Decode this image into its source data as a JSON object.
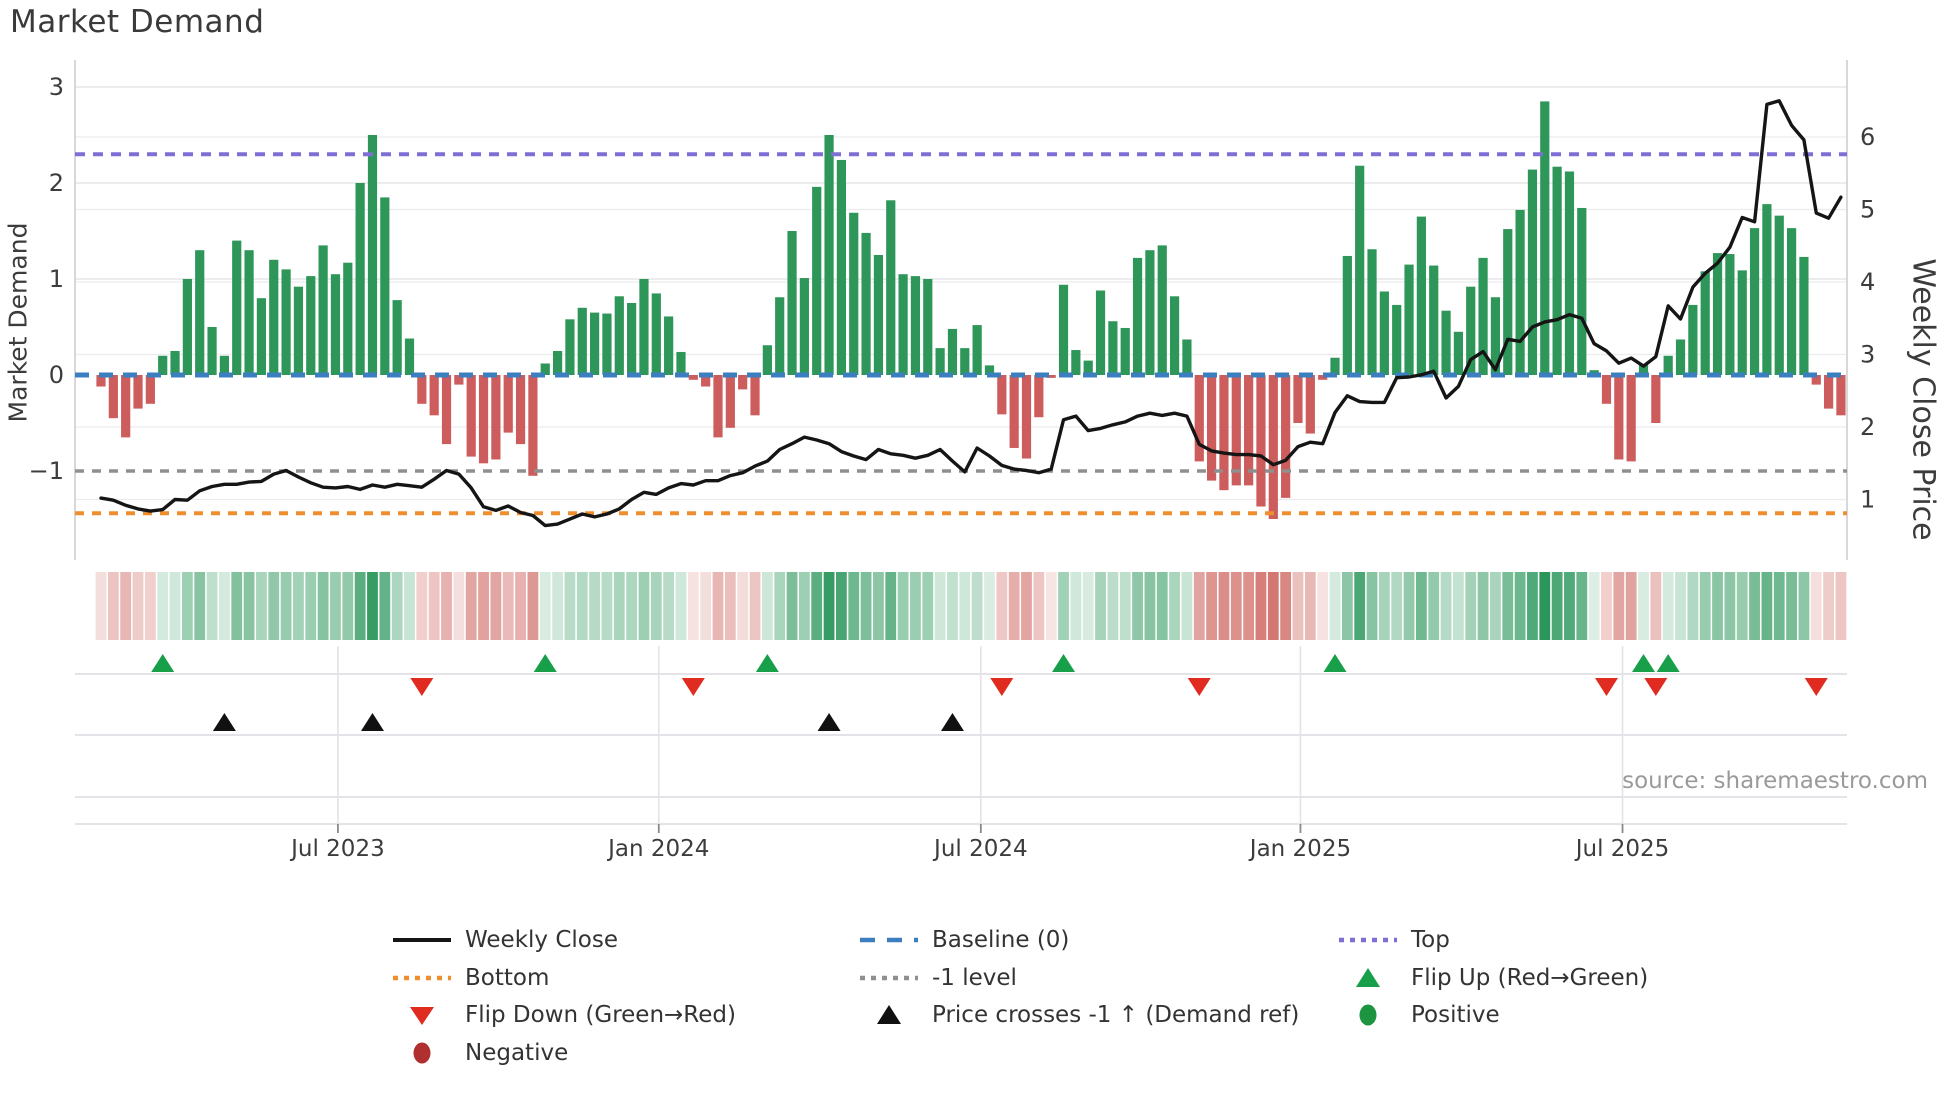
{
  "title": "Market Demand",
  "source_note": "source: sharemaestro.com",
  "left_axis": {
    "label": "Market Demand",
    "ticks": [
      3,
      2,
      1,
      0,
      -1
    ]
  },
  "right_axis": {
    "label": "Weekly Close Price",
    "ticks": [
      6,
      5,
      4,
      3,
      2,
      1
    ]
  },
  "colors": {
    "bar_positive": "#2e9659",
    "bar_negative": "#cd5c5c",
    "price_line": "#151515",
    "baseline": "#3b7fc0",
    "top_line": "#7d6fd4",
    "bottom_line": "#ef8e2e",
    "minus_one_line": "#8f8f8f",
    "flip_up": "#17a049",
    "flip_down": "#e02b20",
    "price_cross": "#111111",
    "positive_dot": "#1d9440",
    "negative_dot": "#b03030",
    "grid": "#e6e6ea",
    "tick_text": "#3c3c3c"
  },
  "chart_data": {
    "type": "bar+line",
    "title": "Market Demand",
    "ylabel_left": "Market Demand",
    "ylabel_right": "Weekly Close Price",
    "ylim_left": [
      -2.2,
      3
    ],
    "ylim_right": [
      0.4,
      6.9
    ],
    "grid": true,
    "legend_position": "bottom",
    "x_ticks": [
      {
        "label": "Jul 2023",
        "week": 19.2
      },
      {
        "label": "Jan 2024",
        "week": 45.2
      },
      {
        "label": "Jul 2024",
        "week": 71.3
      },
      {
        "label": "Jan 2025",
        "week": 97.2
      },
      {
        "label": "Jul 2025",
        "week": 123.3
      }
    ],
    "reference_lines": {
      "baseline": 0,
      "top": 2.3,
      "minus_one": -1,
      "bottom": -1.44
    },
    "series": [
      {
        "name": "Market Demand (weekly bars)",
        "values": [
          -0.12,
          -0.45,
          -0.65,
          -0.35,
          -0.3,
          0.2,
          0.25,
          1.0,
          1.3,
          0.5,
          0.2,
          1.4,
          1.3,
          0.8,
          1.2,
          1.1,
          0.92,
          1.03,
          1.35,
          1.05,
          1.17,
          2.0,
          2.5,
          1.85,
          0.78,
          0.38,
          -0.3,
          -0.42,
          -0.72,
          -0.1,
          -0.85,
          -0.92,
          -0.88,
          -0.6,
          -0.72,
          -1.05,
          0.12,
          0.25,
          0.58,
          0.7,
          0.65,
          0.64,
          0.82,
          0.75,
          1.0,
          0.85,
          0.61,
          0.24,
          -0.05,
          -0.12,
          -0.65,
          -0.55,
          -0.15,
          -0.42,
          0.31,
          0.81,
          1.5,
          1.01,
          1.96,
          2.5,
          2.24,
          1.69,
          1.48,
          1.25,
          1.82,
          1.05,
          1.03,
          1.0,
          0.28,
          0.48,
          0.28,
          0.52,
          0.1,
          -0.41,
          -0.76,
          -0.87,
          -0.44,
          -0.03,
          0.94,
          0.26,
          0.15,
          0.88,
          0.56,
          0.49,
          1.22,
          1.3,
          1.35,
          0.82,
          0.37,
          -0.9,
          -1.1,
          -1.2,
          -1.15,
          -1.15,
          -1.37,
          -1.5,
          -1.28,
          -0.5,
          -0.61,
          -0.05,
          0.18,
          1.24,
          2.18,
          1.31,
          0.87,
          0.73,
          1.15,
          1.65,
          1.14,
          0.67,
          0.45,
          0.92,
          1.22,
          0.81,
          1.52,
          1.72,
          2.14,
          2.85,
          2.17,
          2.12,
          1.74,
          0.05,
          -0.3,
          -0.88,
          -0.9,
          0.11,
          -0.5,
          0.2,
          0.37,
          0.73,
          1.08,
          1.27,
          1.26,
          1.09,
          1.53,
          1.78,
          1.66,
          1.53,
          1.23,
          -0.1,
          -0.35,
          -0.42
        ]
      },
      {
        "name": "Weekly Close",
        "values": [
          1.02,
          0.99,
          0.92,
          0.87,
          0.84,
          0.86,
          1.0,
          0.99,
          1.12,
          1.18,
          1.21,
          1.21,
          1.24,
          1.25,
          1.35,
          1.4,
          1.31,
          1.23,
          1.17,
          1.16,
          1.18,
          1.14,
          1.2,
          1.17,
          1.21,
          1.19,
          1.17,
          1.28,
          1.4,
          1.35,
          1.16,
          0.9,
          0.85,
          0.91,
          0.82,
          0.78,
          0.64,
          0.66,
          0.73,
          0.8,
          0.76,
          0.8,
          0.87,
          1.0,
          1.1,
          1.07,
          1.16,
          1.22,
          1.2,
          1.26,
          1.26,
          1.33,
          1.37,
          1.46,
          1.53,
          1.69,
          1.77,
          1.86,
          1.82,
          1.77,
          1.66,
          1.6,
          1.55,
          1.69,
          1.63,
          1.61,
          1.57,
          1.61,
          1.69,
          1.53,
          1.38,
          1.71,
          1.6,
          1.47,
          1.42,
          1.4,
          1.37,
          1.42,
          2.1,
          2.15,
          1.95,
          1.98,
          2.03,
          2.07,
          2.15,
          2.19,
          2.16,
          2.19,
          2.15,
          1.76,
          1.67,
          1.64,
          1.62,
          1.62,
          1.6,
          1.48,
          1.54,
          1.73,
          1.79,
          1.77,
          2.2,
          2.43,
          2.35,
          2.34,
          2.34,
          2.68,
          2.69,
          2.72,
          2.77,
          2.4,
          2.56,
          2.93,
          3.04,
          2.79,
          3.21,
          3.18,
          3.38,
          3.45,
          3.48,
          3.55,
          3.5,
          3.15,
          3.05,
          2.88,
          2.95,
          2.84,
          2.97,
          3.67,
          3.49,
          3.93,
          4.12,
          4.26,
          4.48,
          4.89,
          4.83,
          6.45,
          6.5,
          6.16,
          5.96,
          4.95,
          4.88,
          5.17
        ]
      }
    ],
    "markers": {
      "flip_up_weeks": [
        5,
        36,
        54,
        78,
        100,
        125,
        127
      ],
      "flip_down_weeks": [
        26,
        48,
        73,
        89,
        122,
        126,
        139
      ],
      "price_cross_weeks": [
        10,
        22,
        59,
        69
      ]
    },
    "heatmap": "mirrors demand bar values as green/red intensity strip"
  },
  "legend": {
    "items": [
      {
        "label": "Weekly Close",
        "swatch": "solid-line",
        "col": 0,
        "row": 0
      },
      {
        "label": "Baseline (0)",
        "swatch": "dashed-blue",
        "col": 1,
        "row": 0
      },
      {
        "label": "Top",
        "swatch": "dotted-purple",
        "col": 2,
        "row": 0
      },
      {
        "label": "Bottom",
        "swatch": "dotted-orange",
        "col": 0,
        "row": 1
      },
      {
        "label": "-1 level",
        "swatch": "dotted-gray",
        "col": 1,
        "row": 1
      },
      {
        "label": "Flip Up (Red→Green)",
        "swatch": "tri-up-green",
        "col": 2,
        "row": 1
      },
      {
        "label": "Flip Down (Green→Red)",
        "swatch": "tri-down-red",
        "col": 0,
        "row": 2
      },
      {
        "label": "Price crosses -1 ↑ (Demand ref)",
        "swatch": "tri-up-black",
        "col": 1,
        "row": 2
      },
      {
        "label": "Positive",
        "swatch": "circle-green",
        "col": 2,
        "row": 2
      },
      {
        "label": "Negative",
        "swatch": "circle-red",
        "col": 0,
        "row": 3
      }
    ]
  }
}
